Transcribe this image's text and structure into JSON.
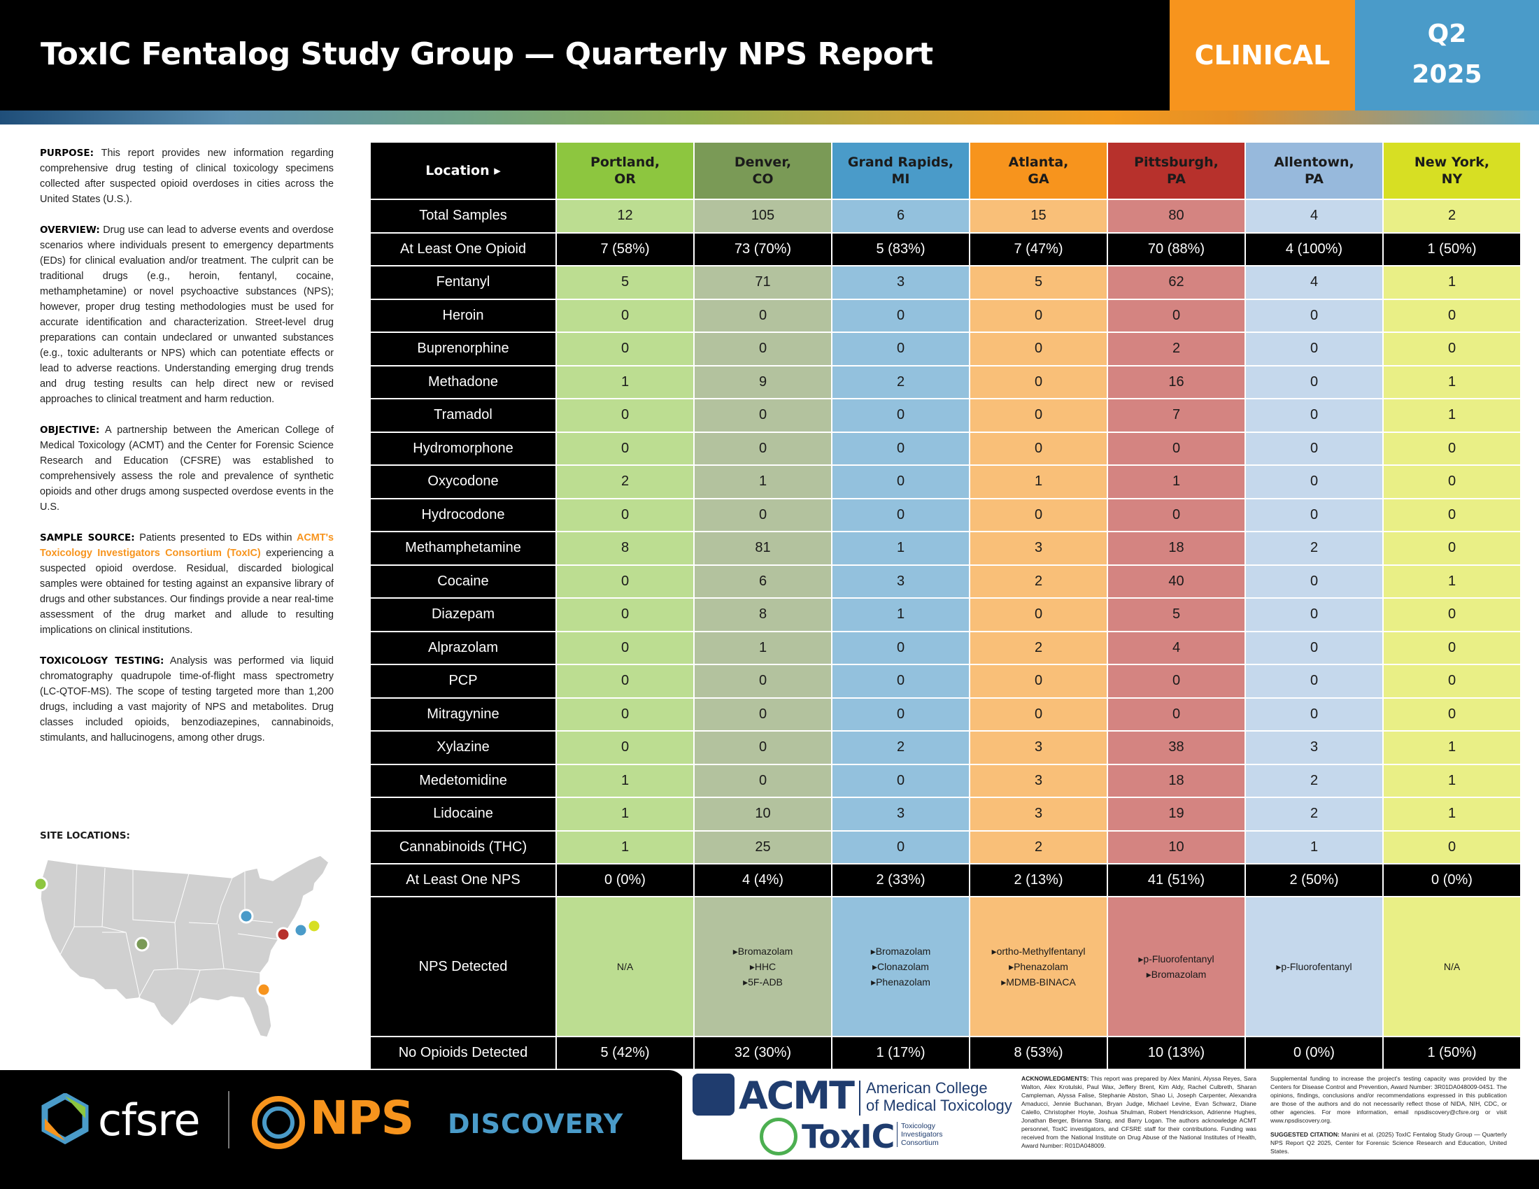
{
  "header": {
    "title": "ToxIC Fentalog Study Group — Quarterly NPS Report",
    "badge": "CLINICAL",
    "quarter": "Q2",
    "year": "2025"
  },
  "colors": {
    "orange": "#f7941d",
    "blue": "#4a9bc9",
    "navy": "#1f3c6e",
    "locations": [
      "#8dc63f",
      "#7a9a56",
      "#4a9bc9",
      "#f7941d",
      "#b7312c",
      "#97b9dc",
      "#d7df23"
    ]
  },
  "left": {
    "purpose_label": "PURPOSE:",
    "purpose_text": "This report provides new information regarding comprehensive drug testing of clinical toxicology specimens collected after suspected opioid overdoses in cities across the United States (U.S.).",
    "overview_label": "OVERVIEW:",
    "overview_text": "Drug use can lead to adverse events and overdose scenarios where individuals present to emergency departments (EDs) for clinical evaluation and/or treatment. The culprit can be traditional drugs (e.g., heroin, fentanyl, cocaine, methamphetamine) or novel psychoactive substances (NPS); however, proper drug testing methodologies must be used for accurate identification and characterization. Street-level drug preparations can contain undeclared or unwanted substances (e.g., toxic adulterants or NPS) which can potentiate effects or lead to adverse reactions. Understanding emerging drug trends and drug testing results can help direct new or revised approaches to clinical treatment and harm reduction.",
    "objective_label": "OBJECTIVE:",
    "objective_text": "A partnership between the American College of Medical Toxicology (ACMT) and the Center for Forensic Science Research and Education (CFSRE) was established to comprehensively assess the role and prevalence of synthetic opioids and other drugs among suspected overdose events in the U.S.",
    "sample_label": "SAMPLE SOURCE:",
    "sample_pre": "Patients presented to EDs within",
    "sample_highlight": "ACMT's Toxicology Investigators Consortium (ToxIC)",
    "sample_post": "experiencing a suspected opioid overdose. Residual, discarded biological samples were obtained for testing against an expansive library of drugs and other substances. Our findings provide a near real-time assessment of the drug market and allude to resulting implications on clinical institutions.",
    "testing_label": "TOXICOLOGY TESTING:",
    "testing_text": "Analysis was performed via liquid chromatography quadrupole time-of-flight mass spectrometry (LC-QTOF-MS). The scope of testing targeted more than 1,200 drugs, including a vast majority of NPS and metabolites. Drug classes included opioids, benzodiazepines, cannabinoids, stimulants, and hallucinogens, among other drugs.",
    "site_label": "SITE LOCATIONS:"
  },
  "table": {
    "corner_label": "Location ▸",
    "locations": [
      {
        "city": "Portland,",
        "state": "OR"
      },
      {
        "city": "Denver,",
        "state": "CO"
      },
      {
        "city": "Grand Rapids,",
        "state": "MI"
      },
      {
        "city": "Atlanta,",
        "state": "GA"
      },
      {
        "city": "Pittsburgh,",
        "state": "PA"
      },
      {
        "city": "Allentown,",
        "state": "PA"
      },
      {
        "city": "New York,",
        "state": "NY"
      }
    ],
    "rows": [
      {
        "label": "Total Samples",
        "style": "color",
        "values": [
          "12",
          "105",
          "6",
          "15",
          "80",
          "4",
          "2"
        ]
      },
      {
        "label": "At Least One Opioid",
        "style": "black",
        "values": [
          "7 (58%)",
          "73 (70%)",
          "5 (83%)",
          "7 (47%)",
          "70 (88%)",
          "4 (100%)",
          "1 (50%)"
        ]
      },
      {
        "label": "Fentanyl",
        "style": "color",
        "values": [
          "5",
          "71",
          "3",
          "5",
          "62",
          "4",
          "1"
        ]
      },
      {
        "label": "Heroin",
        "style": "color",
        "values": [
          "0",
          "0",
          "0",
          "0",
          "0",
          "0",
          "0"
        ]
      },
      {
        "label": "Buprenorphine",
        "style": "color",
        "values": [
          "0",
          "0",
          "0",
          "0",
          "2",
          "0",
          "0"
        ]
      },
      {
        "label": "Methadone",
        "style": "color",
        "values": [
          "1",
          "9",
          "2",
          "0",
          "16",
          "0",
          "1"
        ]
      },
      {
        "label": "Tramadol",
        "style": "color",
        "values": [
          "0",
          "0",
          "0",
          "0",
          "7",
          "0",
          "1"
        ]
      },
      {
        "label": "Hydromorphone",
        "style": "color",
        "values": [
          "0",
          "0",
          "0",
          "0",
          "0",
          "0",
          "0"
        ]
      },
      {
        "label": "Oxycodone",
        "style": "color",
        "values": [
          "2",
          "1",
          "0",
          "1",
          "1",
          "0",
          "0"
        ]
      },
      {
        "label": "Hydrocodone",
        "style": "color",
        "values": [
          "0",
          "0",
          "0",
          "0",
          "0",
          "0",
          "0"
        ]
      },
      {
        "label": "Methamphetamine",
        "style": "color",
        "values": [
          "8",
          "81",
          "1",
          "3",
          "18",
          "2",
          "0"
        ]
      },
      {
        "label": "Cocaine",
        "style": "color",
        "values": [
          "0",
          "6",
          "3",
          "2",
          "40",
          "0",
          "1"
        ]
      },
      {
        "label": "Diazepam",
        "style": "color",
        "values": [
          "0",
          "8",
          "1",
          "0",
          "5",
          "0",
          "0"
        ]
      },
      {
        "label": "Alprazolam",
        "style": "color",
        "values": [
          "0",
          "1",
          "0",
          "2",
          "4",
          "0",
          "0"
        ]
      },
      {
        "label": "PCP",
        "style": "color",
        "values": [
          "0",
          "0",
          "0",
          "0",
          "0",
          "0",
          "0"
        ]
      },
      {
        "label": "Mitragynine",
        "style": "color",
        "values": [
          "0",
          "0",
          "0",
          "0",
          "0",
          "0",
          "0"
        ]
      },
      {
        "label": "Xylazine",
        "style": "color",
        "values": [
          "0",
          "0",
          "2",
          "3",
          "38",
          "3",
          "1"
        ]
      },
      {
        "label": "Medetomidine",
        "style": "color",
        "values": [
          "1",
          "0",
          "0",
          "3",
          "18",
          "2",
          "1"
        ]
      },
      {
        "label": "Lidocaine",
        "style": "color",
        "values": [
          "1",
          "10",
          "3",
          "3",
          "19",
          "2",
          "1"
        ]
      },
      {
        "label": "Cannabinoids (THC)",
        "style": "color",
        "values": [
          "1",
          "25",
          "0",
          "2",
          "10",
          "1",
          "0"
        ]
      },
      {
        "label": "At Least One NPS",
        "style": "black",
        "values": [
          "0 (0%)",
          "4 (4%)",
          "2 (33%)",
          "2 (13%)",
          "41 (51%)",
          "2 (50%)",
          "0 (0%)"
        ]
      }
    ],
    "nps_row": {
      "label": "NPS Detected",
      "values": [
        [
          "N/A"
        ],
        [
          "▸Bromazolam",
          "▸HHC",
          "▸5F-ADB"
        ],
        [
          "▸Bromazolam",
          "▸Clonazolam",
          "▸Phenazolam"
        ],
        [
          "▸ortho-Methylfentanyl",
          "▸Phenazolam",
          "▸MDMB-BINACA"
        ],
        [
          "▸p-Fluorofentanyl",
          "▸Bromazolam"
        ],
        [
          "▸p-Fluorofentanyl"
        ],
        [
          "N/A"
        ]
      ]
    },
    "last_row": {
      "label": "No Opioids Detected",
      "values": [
        "5 (42%)",
        "32 (30%)",
        "1 (17%)",
        "8 (53%)",
        "10 (13%)",
        "0 (0%)",
        "1 (50%)"
      ]
    }
  },
  "footer": {
    "cfsre": "cfsre",
    "nps": "NPS",
    "discovery": "DISCOVERY",
    "acmt": "ACMT",
    "acmt_name_1": "American College",
    "acmt_name_2": "of Medical Toxicology",
    "toxic": "ToxIC",
    "toxic_sub_1": "Toxicology",
    "toxic_sub_2": "Investigators",
    "toxic_sub_3": "Consortium",
    "ack_label": "ACKNOWLEDGMENTS:",
    "ack_text": "This report was prepared by Alex Manini, Alyssa Reyes, Sara Walton, Alex Krotulski, Paul Wax, Jeffery Brent, Kim Aldy, Rachel Culbreth, Sharan Campleman, Alyssa Falise, Stephanie Abston, Shao Li, Joseph Carpenter, Alexandra Amaducci, Jennie Buchanan, Bryan Judge, Michael Levine, Evan Schwarz, Diane Calello, Christopher Hoyte, Joshua Shulman, Robert Hendrickson, Adrienne Hughes, Jonathan Berger, Brianna Stang, and Barry Logan. The authors acknowledge ACMT personnel, ToxIC investigators, and CFSRE staff for their contributions. Funding was received from the National Institute on Drug Abuse of the National Institutes of Health, Award Number: R01DA048009.",
    "funding_text": "Supplemental funding to increase the project's testing capacity was provided by the Centers for Disease Control and Prevention, Award Number: 3R01DA048009-04S1. The opinions, findings, conclusions and/or recommendations expressed in this publication are those of the authors and do not necessarily reflect those of NIDA, NIH, CDC, or other agencies. For more information, email npsdiscovery@cfsre.org or visit www.npsdiscovery.org.",
    "citation_label": "SUGGESTED CITATION:",
    "citation_text": "Manini et al. (2025) ToxIC Fentalog Study Group — Quarterly NPS Report Q2 2025, Center for Forensic Science Research and Education, United States."
  }
}
